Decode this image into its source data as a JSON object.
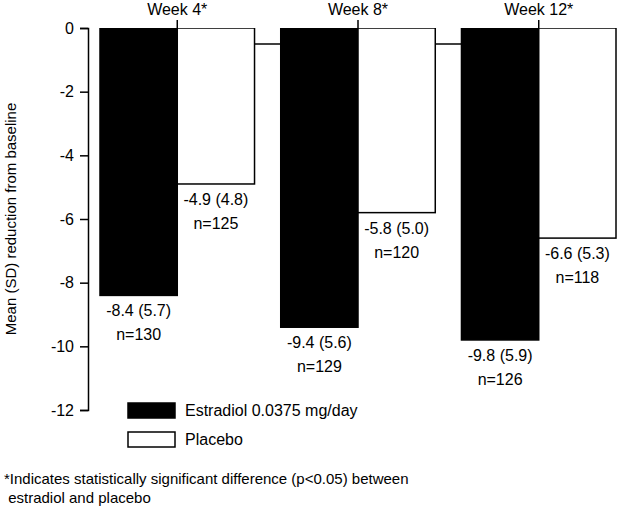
{
  "chart_data": {
    "type": "bar",
    "y_label": "Mean (SD) reduction from baseline",
    "categories": [
      "Week 4*",
      "Week 8*",
      "Week 12*"
    ],
    "series": [
      {
        "name": "Estradiol 0.0375 mg/day",
        "color": "#000000",
        "values": [
          -8.4,
          -9.4,
          -9.8
        ],
        "value_labels": [
          "-8.4 (5.7)",
          "-9.4 (5.6)",
          "-9.8 (5.9)"
        ],
        "n_labels": [
          "n=130",
          "n=129",
          "n=126"
        ]
      },
      {
        "name": "Placebo",
        "color": "#ffffff",
        "values": [
          -4.9,
          -5.8,
          -6.6
        ],
        "value_labels": [
          "-4.9 (4.8)",
          "-5.8 (5.0)",
          "-6.6 (5.3)"
        ],
        "n_labels": [
          "n=125",
          "n=120",
          "n=118"
        ]
      }
    ],
    "ylim": [
      -12,
      0
    ],
    "yticks": [
      0,
      -2,
      -4,
      -6,
      -8,
      -10,
      -12
    ],
    "legend": "bottom",
    "data_labels": true,
    "annotations": [
      "*Indicates statistically significant difference (p<0.05) between",
      " estradiol and placebo"
    ]
  }
}
